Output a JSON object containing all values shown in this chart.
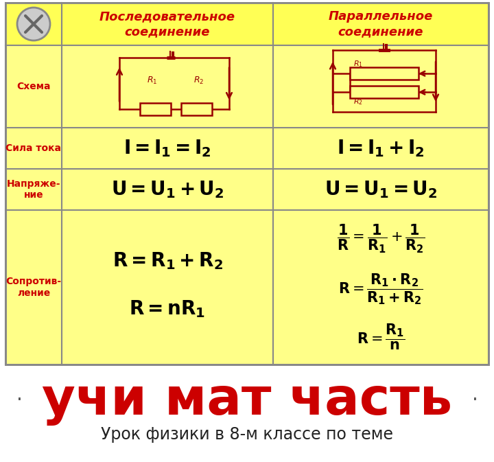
{
  "bg_color": "#ffffff",
  "table_bg_top": "#ffff66",
  "table_bg_bot": "#ffff99",
  "table_border": "#aaaaaa",
  "header_text_color": "#cc0000",
  "row_label_color": "#cc0000",
  "formula_color": "#000000",
  "circuit_color": "#990000",
  "title_text": "учи мат часть",
  "title_color": "#cc0000",
  "subtitle_text": "Урок физики в 8-м классе по теме",
  "subtitle_color": "#222222",
  "col1_header": "Последовательное\nсоединение",
  "col2_header": "Параллельное\nсоединение",
  "row_labels": [
    "Схема",
    "Сила тока",
    "Напряже-\nние",
    "Сопротив-\nление"
  ]
}
